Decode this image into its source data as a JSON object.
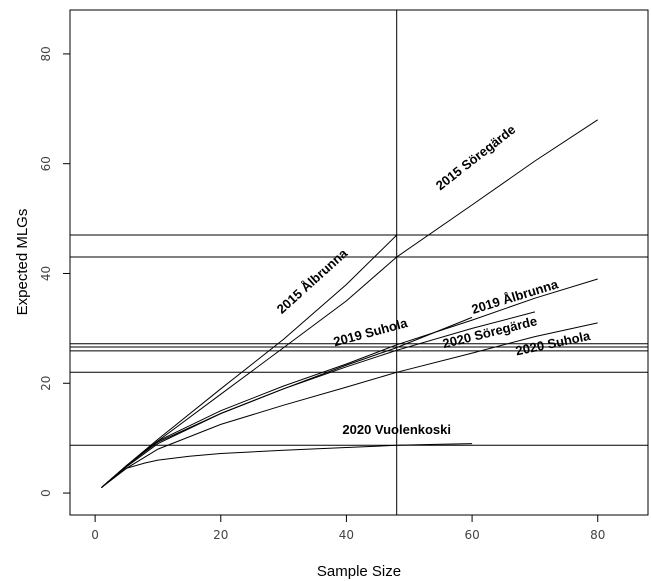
{
  "chart_data": {
    "type": "line",
    "xlabel": "Sample Size",
    "ylabel": "Expected MLGs",
    "xlim": [
      -4,
      88
    ],
    "ylim": [
      -4,
      88
    ],
    "xticks": [
      0,
      20,
      40,
      60,
      80
    ],
    "yticks": [
      0,
      20,
      40,
      60,
      80
    ],
    "grid": false,
    "legend": "none",
    "line_color": "#000000",
    "series": [
      {
        "name": "2015 Söregärde",
        "x": [
          1,
          5,
          10,
          20,
          30,
          40,
          48,
          60,
          70,
          80
        ],
        "y": [
          1,
          5,
          9.5,
          18,
          26.5,
          35,
          43,
          52.5,
          60.5,
          68
        ]
      },
      {
        "name": "2015 Ålbrunna",
        "x": [
          1,
          5,
          10,
          20,
          30,
          40,
          48
        ],
        "y": [
          1,
          5,
          9.8,
          19,
          28,
          38,
          47
        ]
      },
      {
        "name": "2019 Ålbrunna",
        "x": [
          1,
          5,
          10,
          20,
          30,
          40,
          48,
          60,
          70,
          80
        ],
        "y": [
          1,
          5,
          9.5,
          15,
          19.5,
          23.5,
          27,
          31.5,
          35.5,
          39
        ]
      },
      {
        "name": "2019 Suhola",
        "x": [
          1,
          5,
          10,
          20,
          30,
          40,
          48,
          60
        ],
        "y": [
          1,
          5,
          9.3,
          14.5,
          19,
          23.3,
          26.5,
          32
        ]
      },
      {
        "name": "2020 Söregärde",
        "x": [
          1,
          5,
          10,
          20,
          30,
          40,
          48,
          60,
          70
        ],
        "y": [
          1,
          4.8,
          9,
          14.5,
          19,
          23,
          26,
          30,
          33
        ]
      },
      {
        "name": "2020 Suhola",
        "x": [
          1,
          5,
          10,
          20,
          30,
          40,
          48,
          60,
          70,
          80
        ],
        "y": [
          1,
          4.5,
          8,
          12.5,
          16,
          19.3,
          22,
          25.5,
          28.5,
          31
        ]
      },
      {
        "name": "2020 Vuolenkoski",
        "x": [
          1,
          3,
          5,
          8,
          10,
          15,
          20,
          30,
          40,
          48,
          55,
          60
        ],
        "y": [
          1,
          3,
          4.5,
          5.5,
          6,
          6.7,
          7.2,
          7.8,
          8.3,
          8.7,
          8.9,
          9
        ]
      }
    ],
    "vertical_lines": [
      48
    ],
    "horizontal_lines": [
      47,
      43,
      27.2,
      26.6,
      25.9,
      22,
      8.7
    ],
    "labels": [
      {
        "text": "2015 Söregärde",
        "x": 61,
        "y": 60.5,
        "angle": -38
      },
      {
        "text": "2015 Ålbrunna",
        "x": 35,
        "y": 38,
        "angle": -42
      },
      {
        "text": "2019 Ålbrunna",
        "x": 67,
        "y": 35,
        "angle": -17
      },
      {
        "text": "2019 Suhola",
        "x": 44,
        "y": 28.5,
        "angle": -15
      },
      {
        "text": "2020 Söregärde",
        "x": 63,
        "y": 28.5,
        "angle": -14
      },
      {
        "text": "2020 Suhola",
        "x": 73,
        "y": 26.5,
        "angle": -12
      },
      {
        "text": "2020 Vuolenkoski",
        "x": 48,
        "y": 10.8,
        "angle": 0
      }
    ]
  }
}
